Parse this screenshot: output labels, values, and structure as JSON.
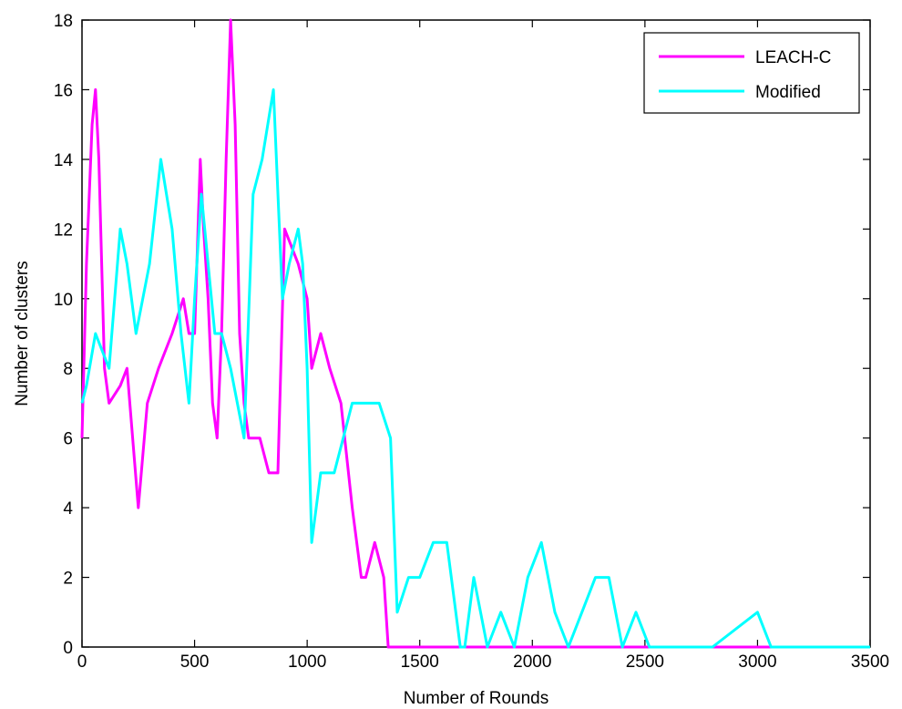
{
  "chart_data": {
    "type": "line",
    "xlabel": "Number of Rounds",
    "ylabel": "Number of clusters",
    "xlim": [
      0,
      3500
    ],
    "ylim": [
      0,
      18
    ],
    "xticks": [
      0,
      500,
      1000,
      1500,
      2000,
      2500,
      3000,
      3500
    ],
    "yticks": [
      0,
      2,
      4,
      6,
      8,
      10,
      12,
      14,
      16,
      18
    ],
    "grid": false,
    "legend_position": "top-right",
    "series": [
      {
        "name": "LEACH-C",
        "color": "#ff00ff",
        "x": [
          0,
          20,
          45,
          60,
          75,
          100,
          120,
          170,
          200,
          225,
          250,
          290,
          340,
          400,
          450,
          475,
          500,
          525,
          540,
          560,
          580,
          600,
          620,
          640,
          660,
          680,
          700,
          720,
          740,
          790,
          830,
          870,
          900,
          960,
          1000,
          1020,
          1060,
          1100,
          1150,
          1200,
          1240,
          1260,
          1300,
          1340,
          1360,
          1380,
          1400,
          1500,
          2000,
          2500,
          3000,
          3100
        ],
        "y": [
          6,
          11,
          15,
          16,
          14,
          8,
          7,
          7.5,
          8,
          6,
          4,
          7,
          8,
          9,
          10,
          9,
          9,
          14,
          12,
          10,
          7,
          6,
          9,
          14,
          18,
          15,
          9,
          7,
          6,
          6,
          5,
          5,
          12,
          11,
          10,
          8,
          9,
          8,
          7,
          4,
          2,
          2,
          3,
          2,
          0,
          0,
          0,
          0,
          0,
          0,
          0,
          0
        ]
      },
      {
        "name": "Modified",
        "color": "#00ffff",
        "x": [
          0,
          20,
          60,
          120,
          170,
          200,
          240,
          300,
          350,
          400,
          440,
          475,
          500,
          530,
          560,
          590,
          620,
          660,
          720,
          760,
          800,
          850,
          890,
          920,
          960,
          980,
          1000,
          1020,
          1060,
          1120,
          1160,
          1200,
          1230,
          1280,
          1320,
          1370,
          1400,
          1450,
          1500,
          1560,
          1620,
          1680,
          1700,
          1740,
          1800,
          1860,
          1920,
          1980,
          2040,
          2100,
          2160,
          2220,
          2280,
          2340,
          2400,
          2460,
          2520,
          2580,
          2800,
          3000,
          3060,
          3100,
          3500
        ],
        "y": [
          7,
          7.5,
          9,
          8,
          12,
          11,
          9,
          11,
          14,
          12,
          9,
          7,
          10,
          13,
          11,
          9,
          9,
          8,
          6,
          13,
          14,
          16,
          10,
          11,
          12,
          11,
          8,
          3,
          5,
          5,
          6,
          7,
          7,
          7,
          7,
          6,
          1,
          2,
          2,
          3,
          3,
          0,
          0,
          2,
          0,
          1,
          0,
          2,
          3,
          1,
          0,
          1,
          2,
          2,
          0,
          1,
          0,
          0,
          0,
          1,
          0,
          0,
          0
        ]
      }
    ]
  }
}
